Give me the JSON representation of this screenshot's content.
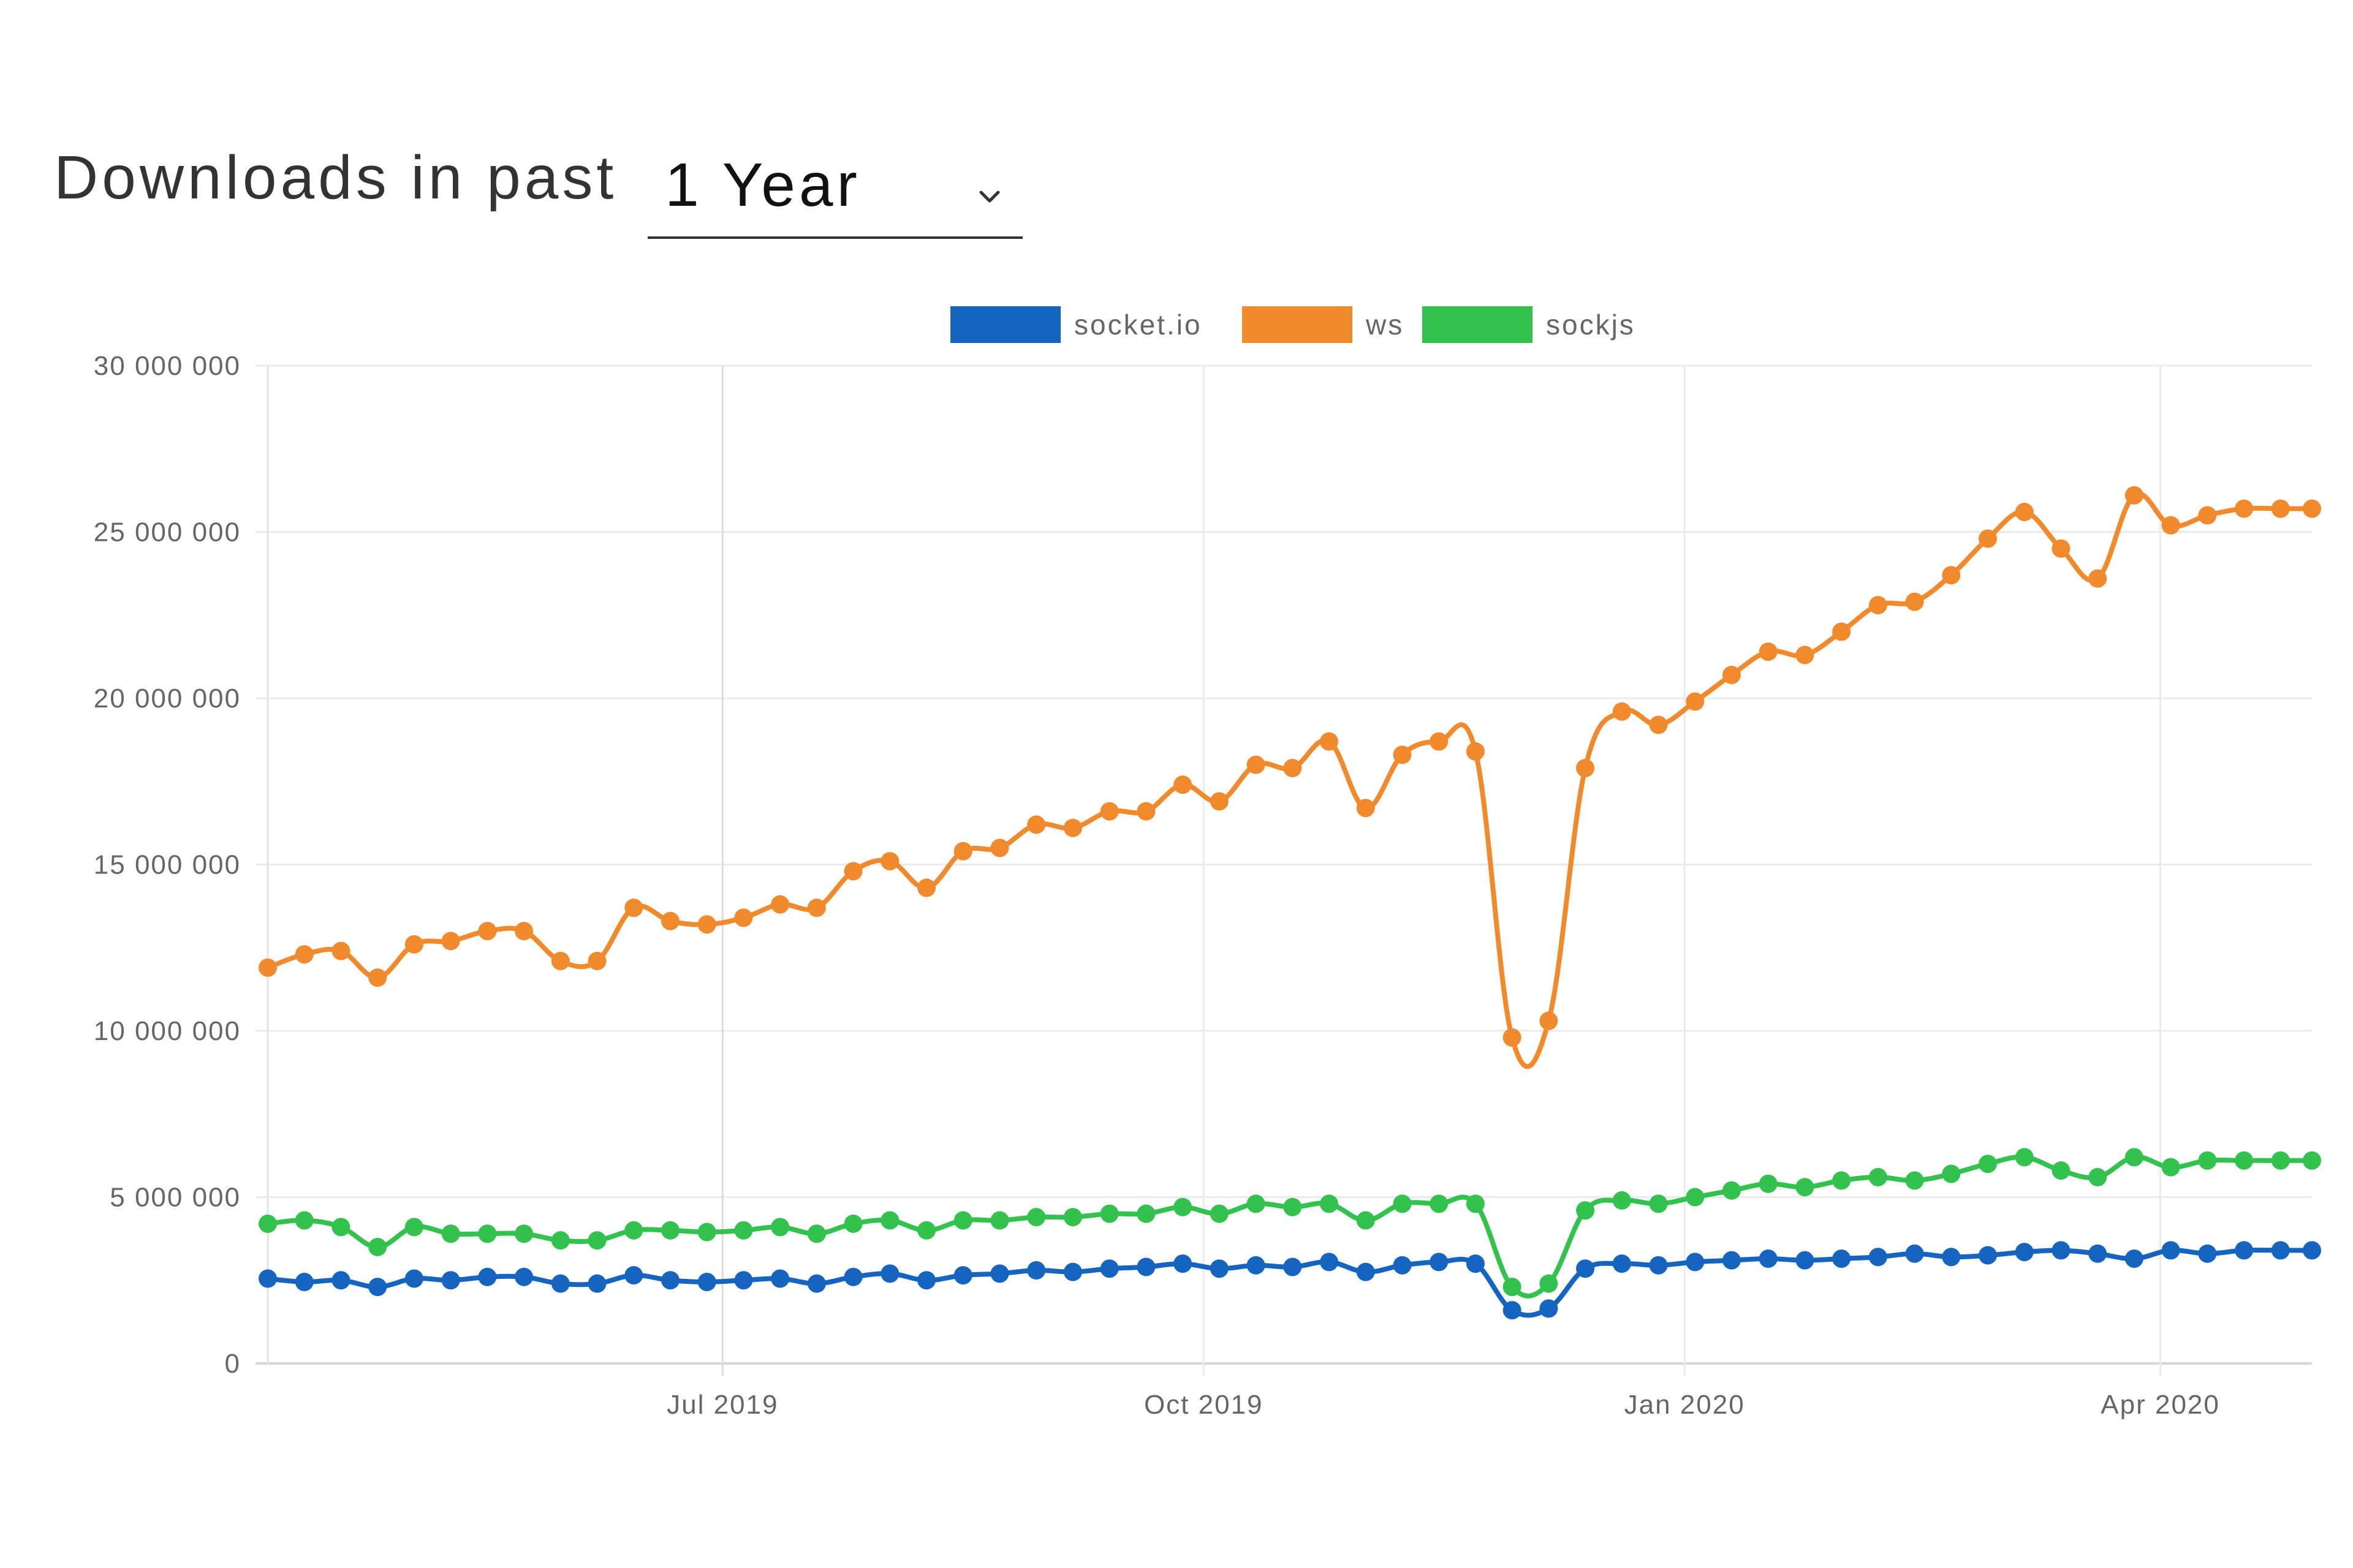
{
  "header": {
    "title": "Downloads in past",
    "period": "1 Year"
  },
  "chart_data": {
    "type": "line",
    "title": "",
    "xlabel": "",
    "ylabel": "",
    "ylim": [
      0,
      30000000
    ],
    "yticks": [
      0,
      5000000,
      10000000,
      15000000,
      20000000,
      25000000,
      30000000
    ],
    "ytick_labels": [
      "0",
      "5 000 000",
      "10 000 000",
      "15 000 000",
      "20 000 000",
      "25 000 000",
      "30 000 000"
    ],
    "xlim": [
      "2019-04-05",
      "2020-04-30"
    ],
    "xticks": [
      "2019-07-01",
      "2019-10-01",
      "2020-01-01",
      "2020-04-01"
    ],
    "xtick_labels": [
      "Jul 2019",
      "Oct 2019",
      "Jan 2020",
      "Apr 2020"
    ],
    "grid": true,
    "legend_position": "top-center",
    "x": [
      "2019-04-05",
      "2019-04-12",
      "2019-04-19",
      "2019-04-26",
      "2019-05-03",
      "2019-05-10",
      "2019-05-17",
      "2019-05-24",
      "2019-05-31",
      "2019-06-07",
      "2019-06-14",
      "2019-06-21",
      "2019-06-28",
      "2019-07-05",
      "2019-07-12",
      "2019-07-19",
      "2019-07-26",
      "2019-08-02",
      "2019-08-09",
      "2019-08-16",
      "2019-08-23",
      "2019-08-30",
      "2019-09-06",
      "2019-09-13",
      "2019-09-20",
      "2019-09-27",
      "2019-10-04",
      "2019-10-11",
      "2019-10-18",
      "2019-10-25",
      "2019-11-01",
      "2019-11-08",
      "2019-11-15",
      "2019-11-22",
      "2019-11-29",
      "2019-12-06",
      "2019-12-13",
      "2019-12-20",
      "2019-12-27",
      "2020-01-03",
      "2020-01-10",
      "2020-01-17",
      "2020-01-24",
      "2020-01-31",
      "2020-02-07",
      "2020-02-14",
      "2020-02-21",
      "2020-02-28",
      "2020-03-06",
      "2020-03-13",
      "2020-03-20",
      "2020-03-27",
      "2020-04-03",
      "2020-04-10",
      "2020-04-17",
      "2020-04-24",
      "2020-04-30"
    ],
    "series": [
      {
        "name": "socket.io",
        "color": "#1565c0",
        "values": [
          2550000,
          2450000,
          2500000,
          2300000,
          2550000,
          2500000,
          2600000,
          2600000,
          2400000,
          2400000,
          2650000,
          2500000,
          2450000,
          2500000,
          2550000,
          2400000,
          2600000,
          2700000,
          2500000,
          2650000,
          2700000,
          2800000,
          2750000,
          2850000,
          2900000,
          3000000,
          2850000,
          2950000,
          2900000,
          3050000,
          2750000,
          2950000,
          3050000,
          3000000,
          1600000,
          1650000,
          2850000,
          3000000,
          2950000,
          3050000,
          3100000,
          3150000,
          3100000,
          3150000,
          3200000,
          3300000,
          3200000,
          3250000,
          3350000,
          3400000,
          3300000,
          3150000,
          3400000,
          3300000,
          3400000,
          3400000,
          3400000
        ]
      },
      {
        "name": "ws",
        "color": "#f08a2c",
        "values": [
          11900000,
          12300000,
          12400000,
          11600000,
          12600000,
          12700000,
          13000000,
          13000000,
          12100000,
          12100000,
          13700000,
          13300000,
          13200000,
          13400000,
          13800000,
          13700000,
          14800000,
          15100000,
          14300000,
          15400000,
          15500000,
          16200000,
          16100000,
          16600000,
          16600000,
          17400000,
          16900000,
          18000000,
          17900000,
          18700000,
          16700000,
          18300000,
          18700000,
          18400000,
          9800000,
          10300000,
          17900000,
          19600000,
          19200000,
          19900000,
          20700000,
          21400000,
          21300000,
          22000000,
          22800000,
          22900000,
          23700000,
          24800000,
          25600000,
          24500000,
          23600000,
          26100000,
          25200000,
          25500000,
          25700000,
          25700000,
          25700000
        ]
      },
      {
        "name": "sockjs",
        "color": "#33c24d",
        "values": [
          4200000,
          4300000,
          4100000,
          3500000,
          4100000,
          3900000,
          3900000,
          3900000,
          3700000,
          3700000,
          4000000,
          4000000,
          3950000,
          4000000,
          4100000,
          3900000,
          4200000,
          4300000,
          4000000,
          4300000,
          4300000,
          4400000,
          4400000,
          4500000,
          4500000,
          4700000,
          4500000,
          4800000,
          4700000,
          4800000,
          4300000,
          4800000,
          4800000,
          4800000,
          2300000,
          2400000,
          4600000,
          4900000,
          4800000,
          5000000,
          5200000,
          5400000,
          5300000,
          5500000,
          5600000,
          5500000,
          5700000,
          6000000,
          6200000,
          5800000,
          5600000,
          6200000,
          5900000,
          6100000,
          6100000,
          6100000,
          6100000
        ]
      }
    ]
  }
}
